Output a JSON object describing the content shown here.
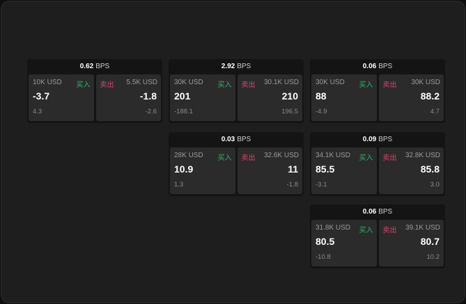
{
  "unit": "BPS",
  "buy_label": "买入",
  "sell_label": "卖出",
  "colors": {
    "buy": "#2fb36a",
    "sell": "#e0406b"
  },
  "cards": [
    {
      "spread": "0.62",
      "buy": {
        "size": "10K USD",
        "price": "-3.7",
        "delta": "4.3"
      },
      "sell": {
        "size": "5.5K USD",
        "price": "-1.8",
        "delta": "-2.6"
      }
    },
    {
      "spread": "2.92",
      "buy": {
        "size": "30K USD",
        "price": "201",
        "delta": "-188.1"
      },
      "sell": {
        "size": "30.1K USD",
        "price": "210",
        "delta": "196.5"
      }
    },
    {
      "spread": "0.06",
      "buy": {
        "size": "30K USD",
        "price": "88",
        "delta": "-4.9"
      },
      "sell": {
        "size": "30K USD",
        "price": "88.2",
        "delta": "4.7"
      }
    },
    {
      "spread": "0.03",
      "buy": {
        "size": "28K USD",
        "price": "10.9",
        "delta": "1.3"
      },
      "sell": {
        "size": "32.6K USD",
        "price": "11",
        "delta": "-1.8"
      }
    },
    {
      "spread": "0.09",
      "buy": {
        "size": "34.1K USD",
        "price": "85.5",
        "delta": "-3.1"
      },
      "sell": {
        "size": "32.8K USD",
        "price": "85.8",
        "delta": "3.0"
      }
    },
    {
      "spread": "0.06",
      "buy": {
        "size": "31.8K USD",
        "price": "80.5",
        "delta": "-10.8"
      },
      "sell": {
        "size": "39.1K USD",
        "price": "80.7",
        "delta": "10.2"
      }
    }
  ]
}
